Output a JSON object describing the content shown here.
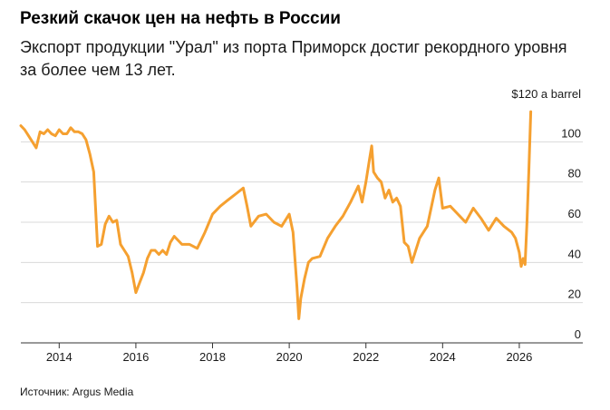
{
  "title": "Резкий скачок цен на нефть в России",
  "subtitle": "Экспорт продукции \"Урал\" из порта Приморск достиг рекордного уровня за более чем 13 лет.",
  "source": "Источник: Argus Media",
  "chart_data": {
    "type": "line",
    "title": "Резкий скачок цен на нефть в России",
    "subtitle": "Экспорт продукции \"Урал\" из порта Приморск достиг рекордного уровня за более чем 13 лет.",
    "unit_label": "$120 a barrel",
    "xlim": [
      2013.0,
      2026.9
    ],
    "ylim": [
      0,
      120
    ],
    "x_ticks": [
      2014,
      2016,
      2018,
      2020,
      2022,
      2024,
      2026
    ],
    "y_ticks": [
      0,
      20,
      40,
      60,
      80,
      100
    ],
    "y_tick_labels": [
      "0",
      "20",
      "40",
      "60",
      "80",
      "100"
    ],
    "grid": "horizontal",
    "line_color": "#F5A030",
    "series": [
      {
        "x": [
          2013.0,
          2013.1,
          2013.2,
          2013.3,
          2013.4,
          2013.5,
          2013.6,
          2013.7,
          2013.8,
          2013.9,
          2014.0,
          2014.1,
          2014.2,
          2014.3,
          2014.4,
          2014.5,
          2014.6,
          2014.7,
          2014.8,
          2014.9,
          2015.0,
          2015.1,
          2015.2,
          2015.3,
          2015.4,
          2015.5,
          2015.6,
          2015.7,
          2015.8,
          2015.9,
          2016.0,
          2016.1,
          2016.2,
          2016.3,
          2016.4,
          2016.5,
          2016.6,
          2016.7,
          2016.8,
          2016.9,
          2017.0,
          2017.2,
          2017.4,
          2017.6,
          2017.8,
          2018.0,
          2018.2,
          2018.4,
          2018.6,
          2018.8,
          2018.9,
          2019.0,
          2019.2,
          2019.4,
          2019.6,
          2019.8,
          2020.0,
          2020.1,
          2020.2,
          2020.25,
          2020.3,
          2020.4,
          2020.5,
          2020.6,
          2020.8,
          2021.0,
          2021.2,
          2021.4,
          2021.6,
          2021.8,
          2021.9,
          2022.0,
          2022.1,
          2022.15,
          2022.2,
          2022.3,
          2022.4,
          2022.5,
          2022.6,
          2022.7,
          2022.8,
          2022.9,
          2023.0,
          2023.1,
          2023.2,
          2023.4,
          2023.6,
          2023.8,
          2023.9,
          2024.0,
          2024.2,
          2024.4,
          2024.6,
          2024.8,
          2025.0,
          2025.2,
          2025.4,
          2025.6,
          2025.8,
          2025.9,
          2026.0,
          2026.05,
          2026.1,
          2026.15,
          2026.2,
          2026.25,
          2026.3
        ],
        "y": [
          108,
          106,
          103,
          100,
          97,
          105,
          104,
          106,
          104,
          103,
          106,
          104,
          104,
          107,
          105,
          105,
          104,
          101,
          94,
          85,
          48,
          49,
          59,
          63,
          60,
          61,
          49,
          46,
          43,
          35,
          25,
          30,
          35,
          42,
          46,
          46,
          44,
          46,
          44,
          50,
          53,
          49,
          49,
          47,
          55,
          64,
          68,
          71,
          74,
          77,
          68,
          58,
          63,
          64,
          60,
          58,
          64,
          55,
          28,
          12,
          22,
          32,
          40,
          42,
          43,
          52,
          58,
          63,
          70,
          78,
          70,
          80,
          92,
          98,
          85,
          82,
          80,
          72,
          76,
          70,
          72,
          68,
          50,
          48,
          40,
          52,
          58,
          76,
          82,
          67,
          68,
          64,
          60,
          67,
          62,
          56,
          62,
          58,
          55,
          52,
          45,
          38,
          42,
          39,
          60,
          86,
          115
        ]
      }
    ]
  }
}
